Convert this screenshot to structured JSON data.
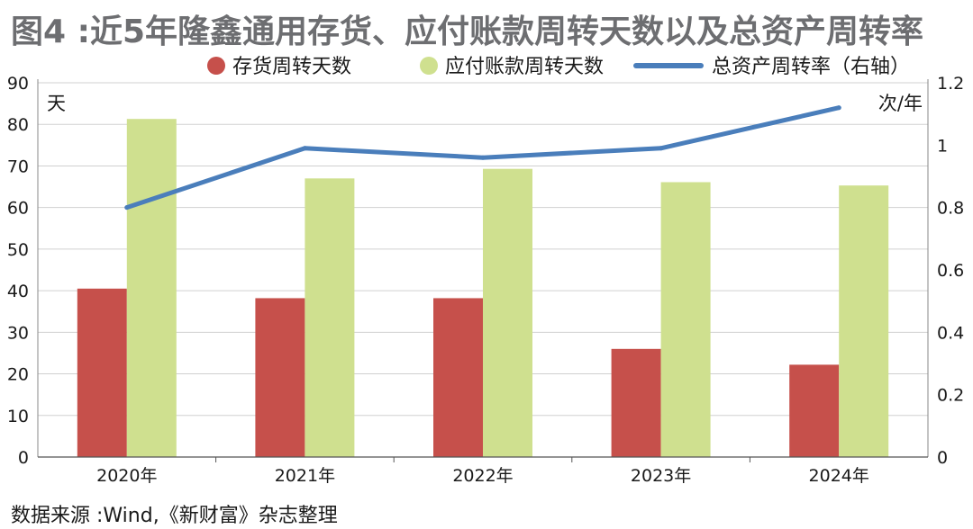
{
  "title": "图4 :近5年隆鑫通用存货、应付账款周转天数以及总资产周转率",
  "source": "数据来源 :Wind,《新财富》杂志整理",
  "chart_data": {
    "type": "bar",
    "categories": [
      "2020年",
      "2021年",
      "2022年",
      "2023年",
      "2024年"
    ],
    "series": [
      {
        "name": "存货周转天数",
        "type": "bar",
        "axis": "left",
        "color": "#c6504b",
        "values": [
          40.5,
          38.2,
          38.2,
          26.0,
          22.2
        ]
      },
      {
        "name": "应付账款周转天数",
        "type": "bar",
        "axis": "left",
        "color": "#cfe08f",
        "values": [
          81.3,
          67.0,
          69.3,
          66.1,
          65.3
        ]
      },
      {
        "name": "总资产周转率（右轴）",
        "type": "line",
        "axis": "right",
        "color": "#4a7ebb",
        "values": [
          0.8,
          0.99,
          0.96,
          0.99,
          1.12
        ]
      }
    ],
    "ylabel": "天",
    "y2label": "次/年",
    "ylim": [
      0,
      90
    ],
    "y2lim": [
      0,
      1.2
    ],
    "yticks": [
      "0",
      "10",
      "20",
      "30",
      "40",
      "50",
      "60",
      "70",
      "80",
      "90"
    ],
    "y2ticks": [
      "0",
      "0.2",
      "0.4",
      "0.6",
      "0.8",
      "1",
      "1.2"
    ],
    "grid": true,
    "legend": "top"
  }
}
